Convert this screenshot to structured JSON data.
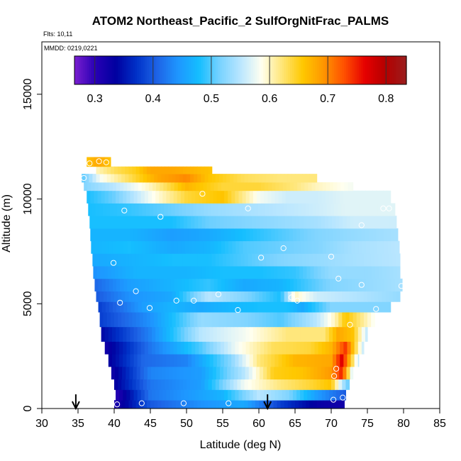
{
  "chart_data": {
    "type": "heatmap",
    "title": "ATOM2 Northeast_Pacific_2 SulfOrgNitFrac_PALMS",
    "flights_label": "Flts: 10,11",
    "dates_label": "MMDD: 0219,0221",
    "xlabel": "Latitude (deg N)",
    "ylabel": "Altitude (m)",
    "xlim": [
      30,
      85
    ],
    "ylim": [
      0,
      17500
    ],
    "xticks": [
      "30",
      "35",
      "40",
      "45",
      "50",
      "55",
      "60",
      "65",
      "70",
      "75",
      "80",
      "85"
    ],
    "yticks": [
      "0",
      "5000",
      "10000",
      "15000"
    ],
    "colorbar": {
      "range": [
        0.265,
        0.835
      ],
      "ticks": [
        "0.3",
        "0.4",
        "0.5",
        "0.6",
        "0.7",
        "0.8"
      ],
      "colors": [
        "#7a1fd0",
        "#2800b4",
        "#0000a0",
        "#0032c8",
        "#1e64e6",
        "#1e96ff",
        "#14beff",
        "#78d2ff",
        "#b9e6ff",
        "#fffff0",
        "#ffe678",
        "#ffc800",
        "#ff9600",
        "#ff5000",
        "#e60000",
        "#b40000",
        "#9a1e1e"
      ]
    },
    "arrows_at_latitude": [
      34.7,
      61.2
    ],
    "grid": false,
    "legend": "none",
    "bands": [
      {
        "y0": 0,
        "y1": 400,
        "x0": 40.0,
        "x1": 71.8,
        "v": [
          [
            40.0,
            0.31
          ],
          [
            45,
            0.4
          ],
          [
            52,
            0.44
          ],
          [
            58,
            0.46
          ],
          [
            63,
            0.38
          ],
          [
            68,
            0.33
          ],
          [
            71.8,
            0.32
          ]
        ]
      },
      {
        "y0": 400,
        "y1": 900,
        "x0": 40.2,
        "x1": 72.0,
        "v": [
          [
            40.2,
            0.3
          ],
          [
            45,
            0.42
          ],
          [
            55,
            0.47
          ],
          [
            60,
            0.55
          ],
          [
            64,
            0.52
          ],
          [
            68,
            0.45
          ],
          [
            72,
            0.4
          ]
        ]
      },
      {
        "y0": 900,
        "y1": 1400,
        "x0": 40.0,
        "x1": 72.5,
        "v": [
          [
            40,
            0.33
          ],
          [
            45,
            0.42
          ],
          [
            52,
            0.45
          ],
          [
            58,
            0.58
          ],
          [
            63,
            0.62
          ],
          [
            67,
            0.64
          ],
          [
            70,
            0.66
          ],
          [
            71.5,
            0.55
          ],
          [
            72.5,
            0.5
          ]
        ]
      },
      {
        "y0": 1400,
        "y1": 2000,
        "x0": 39.6,
        "x1": 73.0,
        "v": [
          [
            39.6,
            0.32
          ],
          [
            45,
            0.43
          ],
          [
            52,
            0.45
          ],
          [
            58,
            0.55
          ],
          [
            62,
            0.65
          ],
          [
            66,
            0.66
          ],
          [
            70,
            0.69
          ],
          [
            71.5,
            0.75
          ],
          [
            73,
            0.55
          ]
        ]
      },
      {
        "y0": 2000,
        "y1": 2600,
        "x0": 39.2,
        "x1": 73.8,
        "v": [
          [
            39.2,
            0.33
          ],
          [
            44,
            0.41
          ],
          [
            50,
            0.43
          ],
          [
            56,
            0.52
          ],
          [
            60,
            0.62
          ],
          [
            65,
            0.67
          ],
          [
            70,
            0.68
          ],
          [
            71.5,
            0.77
          ],
          [
            73.8,
            0.55
          ]
        ]
      },
      {
        "y0": 2600,
        "y1": 3200,
        "x0": 38.7,
        "x1": 74.5,
        "v": [
          [
            38.7,
            0.32
          ],
          [
            45,
            0.42
          ],
          [
            52,
            0.5
          ],
          [
            57,
            0.58
          ],
          [
            62,
            0.63
          ],
          [
            67,
            0.64
          ],
          [
            70,
            0.67
          ],
          [
            72,
            0.74
          ],
          [
            74.5,
            0.55
          ]
        ]
      },
      {
        "y0": 3200,
        "y1": 3900,
        "x0": 38.2,
        "x1": 75.0,
        "v": [
          [
            38.2,
            0.34
          ],
          [
            45,
            0.43
          ],
          [
            52,
            0.55
          ],
          [
            58,
            0.58
          ],
          [
            64,
            0.62
          ],
          [
            69,
            0.62
          ],
          [
            71,
            0.68
          ],
          [
            73,
            0.66
          ],
          [
            75,
            0.55
          ]
        ]
      },
      {
        "y0": 3900,
        "y1": 4600,
        "x0": 38.0,
        "x1": 76.0,
        "v": [
          [
            38,
            0.38
          ],
          [
            45,
            0.44
          ],
          [
            52,
            0.53
          ],
          [
            58,
            0.52
          ],
          [
            63,
            0.5
          ],
          [
            68,
            0.55
          ],
          [
            70.5,
            0.6
          ],
          [
            72,
            0.66
          ],
          [
            76,
            0.58
          ]
        ]
      },
      {
        "y0": 4600,
        "y1": 5100,
        "x0": 37.8,
        "x1": 78.2,
        "v": [
          [
            37.8,
            0.38
          ],
          [
            44,
            0.45
          ],
          [
            48,
            0.47
          ],
          [
            52,
            0.46
          ],
          [
            55,
            0.47
          ],
          [
            60,
            0.48
          ],
          [
            64,
            0.48
          ],
          [
            66,
            0.46
          ],
          [
            70,
            0.52
          ],
          [
            75,
            0.52
          ],
          [
            78.2,
            0.52
          ]
        ]
      },
      {
        "y0": 5100,
        "y1": 5600,
        "x0": 37.5,
        "x1": 79.5,
        "v": [
          [
            37.5,
            0.4
          ],
          [
            42,
            0.44
          ],
          [
            48,
            0.46
          ],
          [
            53,
            0.55
          ],
          [
            58,
            0.52
          ],
          [
            63,
            0.48
          ],
          [
            65,
            0.6
          ],
          [
            68,
            0.56
          ],
          [
            72,
            0.55
          ],
          [
            79.5,
            0.53
          ]
        ]
      },
      {
        "y0": 5600,
        "y1": 6200,
        "x0": 37.3,
        "x1": 79.8,
        "v": [
          [
            37.3,
            0.41
          ],
          [
            42,
            0.45
          ],
          [
            48,
            0.47
          ],
          [
            53,
            0.49
          ],
          [
            58,
            0.46
          ],
          [
            63,
            0.47
          ],
          [
            70,
            0.52
          ],
          [
            75,
            0.53
          ],
          [
            79.8,
            0.54
          ]
        ]
      },
      {
        "y0": 6200,
        "y1": 6800,
        "x0": 37.1,
        "x1": 79.5,
        "v": [
          [
            37.1,
            0.44
          ],
          [
            43,
            0.47
          ],
          [
            50,
            0.47
          ],
          [
            55,
            0.48
          ],
          [
            60,
            0.48
          ],
          [
            65,
            0.49
          ],
          [
            70,
            0.53
          ],
          [
            75,
            0.53
          ],
          [
            79.5,
            0.54
          ]
        ]
      },
      {
        "y0": 6800,
        "y1": 7400,
        "x0": 37.0,
        "x1": 79.5,
        "v": [
          [
            37,
            0.46
          ],
          [
            43,
            0.47
          ],
          [
            48,
            0.48
          ],
          [
            53,
            0.48
          ],
          [
            58,
            0.5
          ],
          [
            63,
            0.52
          ],
          [
            68,
            0.53
          ],
          [
            73,
            0.54
          ],
          [
            79.5,
            0.55
          ]
        ]
      },
      {
        "y0": 7400,
        "y1": 8000,
        "x0": 36.8,
        "x1": 79.4,
        "v": [
          [
            36.8,
            0.47
          ],
          [
            42,
            0.48
          ],
          [
            48,
            0.46
          ],
          [
            53,
            0.47
          ],
          [
            58,
            0.5
          ],
          [
            63,
            0.51
          ],
          [
            68,
            0.52
          ],
          [
            73,
            0.54
          ],
          [
            79.4,
            0.55
          ]
        ]
      },
      {
        "y0": 8000,
        "y1": 8600,
        "x0": 36.7,
        "x1": 79.2,
        "v": [
          [
            36.7,
            0.47
          ],
          [
            42,
            0.47
          ],
          [
            48,
            0.45
          ],
          [
            53,
            0.46
          ],
          [
            58,
            0.48
          ],
          [
            63,
            0.5
          ],
          [
            68,
            0.52
          ],
          [
            73,
            0.53
          ],
          [
            79.2,
            0.54
          ]
        ]
      },
      {
        "y0": 8600,
        "y1": 9200,
        "x0": 36.6,
        "x1": 79.0,
        "v": [
          [
            36.6,
            0.48
          ],
          [
            42,
            0.48
          ],
          [
            48,
            0.48
          ],
          [
            53,
            0.51
          ],
          [
            58,
            0.52
          ],
          [
            63,
            0.53
          ],
          [
            68,
            0.54
          ],
          [
            73,
            0.56
          ],
          [
            79,
            0.56
          ]
        ]
      },
      {
        "y0": 9200,
        "y1": 9800,
        "x0": 36.4,
        "x1": 78.8,
        "v": [
          [
            36.4,
            0.48
          ],
          [
            42,
            0.49
          ],
          [
            48,
            0.51
          ],
          [
            53,
            0.53
          ],
          [
            58,
            0.54
          ],
          [
            63,
            0.55
          ],
          [
            68,
            0.56
          ],
          [
            72,
            0.57
          ],
          [
            78.8,
            0.57
          ]
        ]
      },
      {
        "y0": 9800,
        "y1": 10400,
        "x0": 36.2,
        "x1": 78.2,
        "v": [
          [
            36.2,
            0.48
          ],
          [
            40,
            0.51
          ],
          [
            45,
            0.58
          ],
          [
            50,
            0.64
          ],
          [
            55,
            0.66
          ],
          [
            60,
            0.58
          ],
          [
            64,
            0.56
          ],
          [
            68,
            0.56
          ],
          [
            72,
            0.57
          ],
          [
            78.2,
            0.57
          ]
        ]
      },
      {
        "y0": 10400,
        "y1": 10800,
        "x0": 35.8,
        "x1": 73.0,
        "v": [
          [
            35.8,
            0.52
          ],
          [
            40,
            0.55
          ],
          [
            45,
            0.6
          ],
          [
            50,
            0.67
          ],
          [
            55,
            0.64
          ],
          [
            60,
            0.64
          ],
          [
            65,
            0.62
          ],
          [
            68,
            0.6
          ],
          [
            73,
            0.58
          ]
        ]
      },
      {
        "y0": 10800,
        "y1": 11200,
        "x0": 35.5,
        "x1": 68.0,
        "v": [
          [
            35.5,
            0.5
          ],
          [
            38,
            0.58
          ],
          [
            42,
            0.63
          ],
          [
            46,
            0.68
          ],
          [
            50,
            0.7
          ],
          [
            53,
            0.66
          ],
          [
            58,
            0.63
          ],
          [
            63,
            0.62
          ],
          [
            68,
            0.62
          ]
        ]
      },
      {
        "y0": 11200,
        "y1": 11550,
        "x0": 37.5,
        "x1": 53.5,
        "v": [
          [
            37.5,
            0.6
          ],
          [
            40,
            0.63
          ],
          [
            43,
            0.65
          ],
          [
            45,
            0.68
          ],
          [
            48,
            0.68
          ],
          [
            51,
            0.67
          ],
          [
            53.5,
            0.66
          ]
        ]
      },
      {
        "y0": 11550,
        "y1": 12000,
        "x0": 36.2,
        "x1": 39.5,
        "v": [
          [
            36.2,
            0.66
          ],
          [
            37.8,
            0.68
          ],
          [
            39.5,
            0.66
          ]
        ]
      }
    ],
    "points": [
      [
        40.4,
        200
      ],
      [
        43.8,
        250
      ],
      [
        49.6,
        250
      ],
      [
        55.8,
        250
      ],
      [
        70.3,
        420
      ],
      [
        71.6,
        520
      ],
      [
        70.4,
        1550
      ],
      [
        70.7,
        1900
      ],
      [
        72.6,
        4000
      ],
      [
        74.2,
        5900
      ],
      [
        76.2,
        4750
      ],
      [
        65.3,
        5150
      ],
      [
        64.5,
        5300
      ],
      [
        54.4,
        5450
      ],
      [
        57.1,
        4700
      ],
      [
        51.0,
        5150
      ],
      [
        48.6,
        5150
      ],
      [
        44.9,
        4800
      ],
      [
        40.8,
        5050
      ],
      [
        43.0,
        5600
      ],
      [
        39.9,
        6950
      ],
      [
        60.3,
        7200
      ],
      [
        63.4,
        7650
      ],
      [
        70.0,
        7250
      ],
      [
        71.0,
        6200
      ],
      [
        79.7,
        5850
      ],
      [
        74.2,
        8750
      ],
      [
        58.5,
        9550
      ],
      [
        46.4,
        9150
      ],
      [
        41.4,
        9450
      ],
      [
        77.2,
        9550
      ],
      [
        78.0,
        9550
      ],
      [
        52.2,
        10250
      ],
      [
        35.8,
        11000
      ],
      [
        36.6,
        11700
      ],
      [
        37.9,
        11800
      ],
      [
        38.9,
        11750
      ]
    ]
  }
}
